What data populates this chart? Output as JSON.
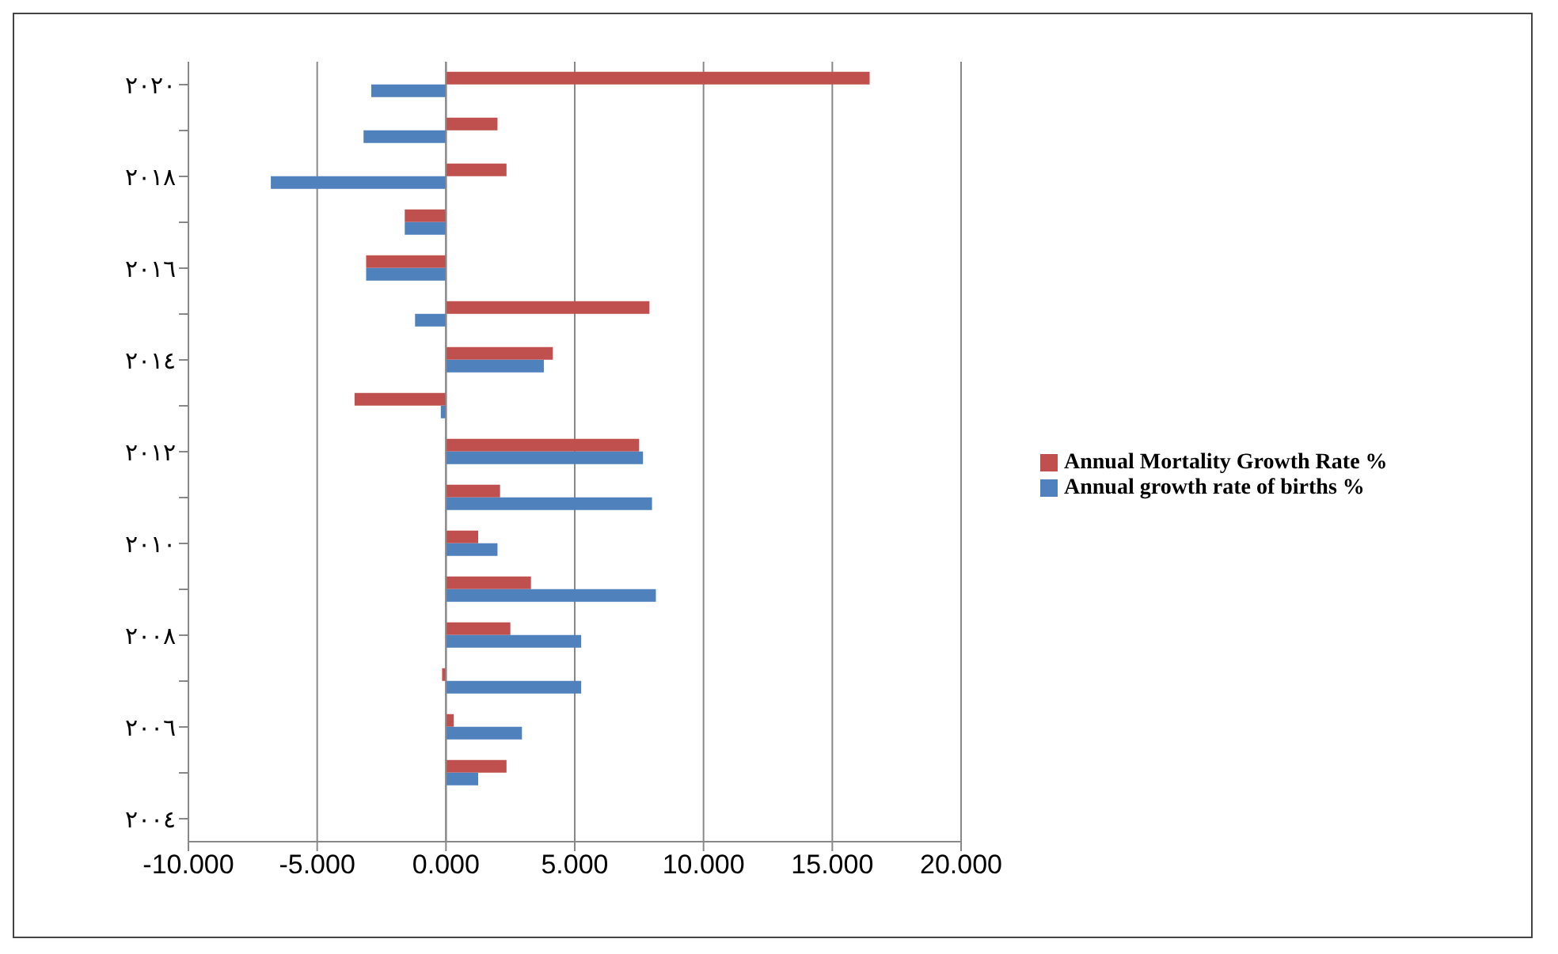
{
  "chart_data": {
    "type": "bar",
    "orientation": "horizontal",
    "categories": [
      "٢٠٢٠",
      null,
      "٢٠١٨",
      null,
      "٢٠١٦",
      null,
      "٢٠١٤",
      null,
      "٢٠١٢",
      null,
      "٢٠١٠",
      null,
      "٢٠٠٨",
      null,
      "٢٠٠٦",
      null,
      "٢٠٠٤"
    ],
    "series": [
      {
        "name": "Annual Mortality Growth Rate %",
        "color": "#c0504d",
        "values": [
          16.45,
          2.0,
          2.35,
          -1.6,
          -3.1,
          7.9,
          4.15,
          -3.55,
          7.5,
          2.1,
          1.25,
          3.3,
          2.5,
          -0.15,
          0.3,
          2.35,
          null
        ]
      },
      {
        "name": "Annual growth rate of births %",
        "color": "#4f81bd",
        "values": [
          -2.9,
          -3.2,
          -6.8,
          -1.6,
          -3.1,
          -1.2,
          3.8,
          -0.2,
          7.65,
          8.0,
          2.0,
          8.15,
          5.25,
          5.25,
          2.95,
          1.25,
          null
        ]
      }
    ],
    "xlim": [
      -10,
      20
    ],
    "xticks": [
      {
        "value": -10,
        "label": "-10.000"
      },
      {
        "value": -5,
        "label": "-5.000"
      },
      {
        "value": 0,
        "label": "0.000"
      },
      {
        "value": 5,
        "label": "5.000"
      },
      {
        "value": 10,
        "label": "10.000"
      },
      {
        "value": 15,
        "label": "15.000"
      },
      {
        "value": 20,
        "label": "20.000"
      }
    ],
    "grid": "x",
    "legend": "right"
  }
}
